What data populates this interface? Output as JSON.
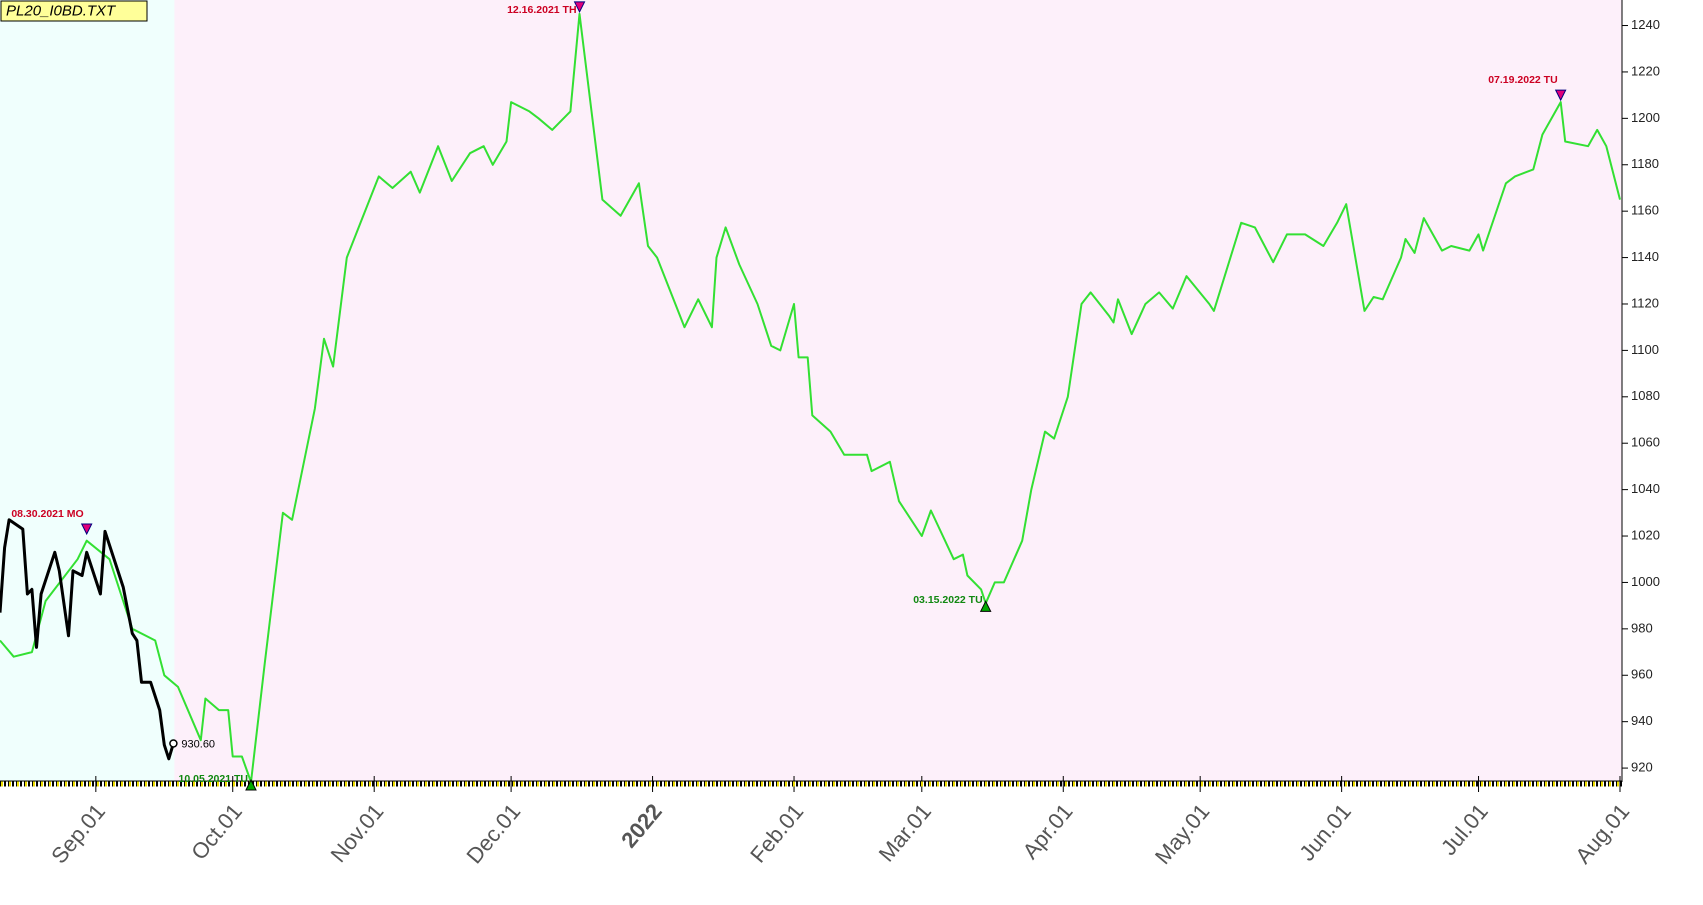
{
  "chart_data": {
    "type": "line",
    "title": "PL20_I0BD.TXT",
    "xlim": [
      "2021-08-11",
      "2022-08-01"
    ],
    "ylim": [
      914,
      1251
    ],
    "yticks": [
      920,
      940,
      960,
      980,
      1000,
      1020,
      1040,
      1060,
      1080,
      1100,
      1120,
      1140,
      1160,
      1180,
      1200,
      1220,
      1240
    ],
    "xticks": [
      {
        "value": "2021-09-01",
        "label": "Sep.01"
      },
      {
        "value": "2021-10-01",
        "label": "Oct.01"
      },
      {
        "value": "2021-11-01",
        "label": "Nov.01"
      },
      {
        "value": "2021-12-01",
        "label": "Dec.01"
      },
      {
        "value": "2022-01-01",
        "label": "2022",
        "color": "#800000"
      },
      {
        "value": "2022-02-01",
        "label": "Feb.01"
      },
      {
        "value": "2022-03-01",
        "label": "Mar.01"
      },
      {
        "value": "2022-04-01",
        "label": "Apr.01"
      },
      {
        "value": "2022-05-01",
        "label": "May.01"
      },
      {
        "value": "2022-06-01",
        "label": "Jun.01"
      },
      {
        "value": "2022-07-01",
        "label": "Jul.01"
      },
      {
        "value": "2022-08-01",
        "label": "Aug.01"
      }
    ],
    "background_colors": [
      "#f0fffd",
      "#fdf0fa"
    ],
    "series": [
      {
        "color": "#33e033",
        "x": [
          "2021-08-11",
          "2021-08-14",
          "2021-08-18",
          "2021-08-21",
          "2021-08-28",
          "2021-08-30",
          "2021-09-04",
          "2021-09-09",
          "2021-09-14",
          "2021-09-16",
          "2021-09-19",
          "2021-09-24",
          "2021-09-25",
          "2021-09-28",
          "2021-09-30",
          "2021-10-01",
          "2021-10-03",
          "2021-10-05",
          "2021-10-08",
          "2021-10-12",
          "2021-10-14",
          "2021-10-19",
          "2021-10-21",
          "2021-10-23",
          "2021-10-26",
          "2021-10-29",
          "2021-11-02",
          "2021-11-05",
          "2021-11-09",
          "2021-11-11",
          "2021-11-15",
          "2021-11-18",
          "2021-11-22",
          "2021-11-25",
          "2021-11-27",
          "2021-11-30",
          "2021-12-01",
          "2021-12-05",
          "2021-12-07",
          "2021-12-10",
          "2021-12-14",
          "2021-12-16",
          "2021-12-21",
          "2021-12-25",
          "2021-12-29",
          "2021-12-31",
          "2022-01-02",
          "2022-01-08",
          "2022-01-11",
          "2022-01-14",
          "2022-01-15",
          "2022-01-17",
          "2022-01-20",
          "2022-01-24",
          "2022-01-27",
          "2022-01-29",
          "2022-02-01",
          "2022-02-02",
          "2022-02-04",
          "2022-02-05",
          "2022-02-09",
          "2022-02-12",
          "2022-02-17",
          "2022-02-18",
          "2022-02-22",
          "2022-02-24",
          "2022-03-01",
          "2022-03-03",
          "2022-03-08",
          "2022-03-10",
          "2022-03-11",
          "2022-03-14",
          "2022-03-15",
          "2022-03-17",
          "2022-03-19",
          "2022-03-23",
          "2022-03-25",
          "2022-03-28",
          "2022-03-30",
          "2022-04-02",
          "2022-04-05",
          "2022-04-07",
          "2022-04-11",
          "2022-04-12",
          "2022-04-13",
          "2022-04-16",
          "2022-04-19",
          "2022-04-22",
          "2022-04-25",
          "2022-04-28",
          "2022-05-03",
          "2022-05-04",
          "2022-05-10",
          "2022-05-13",
          "2022-05-17",
          "2022-05-20",
          "2022-05-24",
          "2022-05-28",
          "2022-05-31",
          "2022-06-02",
          "2022-06-06",
          "2022-06-08",
          "2022-06-10",
          "2022-06-14",
          "2022-06-15",
          "2022-06-17",
          "2022-06-19",
          "2022-06-23",
          "2022-06-25",
          "2022-06-29",
          "2022-07-01",
          "2022-07-02",
          "2022-07-07",
          "2022-07-09",
          "2022-07-13",
          "2022-07-15",
          "2022-07-19",
          "2022-07-20",
          "2022-07-25",
          "2022-07-27",
          "2022-07-29",
          "2022-08-01"
        ],
        "values": [
          975,
          968,
          970,
          992,
          1010,
          1018,
          1010,
          980,
          975,
          960,
          955,
          932,
          950,
          945,
          945,
          925,
          925,
          914,
          965,
          1030,
          1027,
          1075,
          1105,
          1093,
          1140,
          1155,
          1175,
          1170,
          1177,
          1168,
          1188,
          1173,
          1185,
          1188,
          1180,
          1190,
          1207,
          1203,
          1200,
          1195,
          1203,
          1245,
          1165,
          1158,
          1172,
          1145,
          1140,
          1110,
          1122,
          1110,
          1140,
          1153,
          1137,
          1120,
          1102,
          1100,
          1120,
          1097,
          1097,
          1072,
          1065,
          1055,
          1055,
          1048,
          1052,
          1035,
          1020,
          1031,
          1010,
          1012,
          1003,
          997,
          991,
          1000,
          1000,
          1018,
          1040,
          1065,
          1062,
          1080,
          1120,
          1125,
          1115,
          1112,
          1122,
          1107,
          1120,
          1125,
          1118,
          1132,
          1120,
          1117,
          1155,
          1153,
          1138,
          1150,
          1150,
          1145,
          1155,
          1163,
          1117,
          1123,
          1122,
          1140,
          1148,
          1142,
          1157,
          1143,
          1145,
          1143,
          1150,
          1143,
          1172,
          1175,
          1178,
          1193,
          1207,
          1190,
          1188,
          1195,
          1188,
          1165
        ]
      },
      {
        "color": "#000000",
        "x": [
          "2021-08-11",
          "2021-08-12",
          "2021-08-13",
          "2021-08-16",
          "2021-08-17",
          "2021-08-18",
          "2021-08-19",
          "2021-08-20",
          "2021-08-23",
          "2021-08-24",
          "2021-08-26",
          "2021-08-27",
          "2021-08-29",
          "2021-08-30",
          "2021-09-02",
          "2021-09-03",
          "2021-09-07",
          "2021-09-09",
          "2021-09-10",
          "2021-09-11",
          "2021-09-13",
          "2021-09-15",
          "2021-09-16",
          "2021-09-17",
          "2021-09-18"
        ],
        "values": [
          987,
          1015,
          1027,
          1023,
          995,
          997,
          972,
          995,
          1013,
          1005,
          977,
          1005,
          1003,
          1013,
          995,
          1022,
          998,
          978,
          975,
          957,
          957,
          945,
          930,
          924,
          930.6
        ]
      }
    ],
    "annotations": [
      {
        "label": "08.30.2021 MO",
        "x": "2021-08-30",
        "y": 1020,
        "kind": "high",
        "color": "#cc0022"
      },
      {
        "label": "10.05.2021 TU",
        "x": "2021-10-05",
        "y": 914,
        "kind": "low",
        "color": "#118811"
      },
      {
        "label": "12.16.2021 TH",
        "x": "2021-12-16",
        "y": 1245,
        "kind": "high",
        "color": "#cc0022"
      },
      {
        "label": "03.15.2022 TU",
        "x": "2022-03-15",
        "y": 991,
        "kind": "low",
        "color": "#118811"
      },
      {
        "label": "07.19.2022 TU",
        "x": "2022-07-19",
        "y": 1207,
        "kind": "high",
        "color": "#cc0022"
      },
      {
        "label": "930.60",
        "x": "2021-09-18",
        "y": 930.6,
        "kind": "last",
        "color": "#000000"
      }
    ]
  }
}
